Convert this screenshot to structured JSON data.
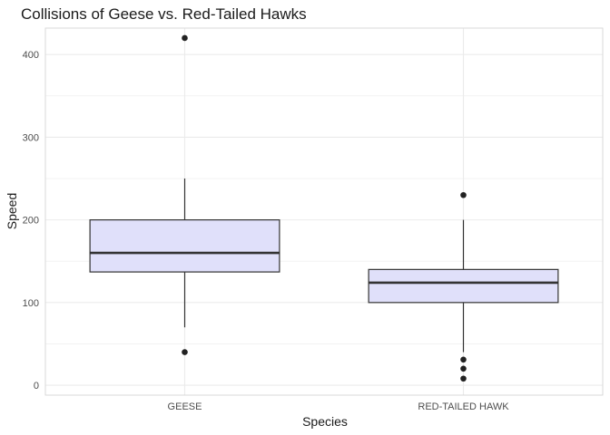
{
  "chart_data": {
    "type": "boxplot",
    "title": "Collisions of Geese vs. Red-Tailed Hawks",
    "xlabel": "Species",
    "ylabel": "Speed",
    "ylim": [
      -12,
      432
    ],
    "yticks": [
      0,
      100,
      200,
      300,
      400
    ],
    "grid": true,
    "categories": [
      "GEESE",
      "RED-TAILED HAWK"
    ],
    "boxes": [
      {
        "category": "GEESE",
        "whisker_low": 70,
        "q1": 137,
        "median": 160,
        "q3": 200,
        "whisker_high": 250,
        "outliers": [
          40,
          420
        ]
      },
      {
        "category": "RED-TAILED HAWK",
        "whisker_low": 40,
        "q1": 100,
        "median": 124,
        "q3": 140,
        "whisker_high": 200,
        "outliers": [
          8,
          20,
          31,
          230
        ]
      }
    ],
    "colors": {
      "box_fill": "#e0e0fa",
      "box_stroke": "#333333",
      "outlier": "#222222",
      "grid": "#ebebeb",
      "panel_border": "#d9d9d9"
    }
  }
}
